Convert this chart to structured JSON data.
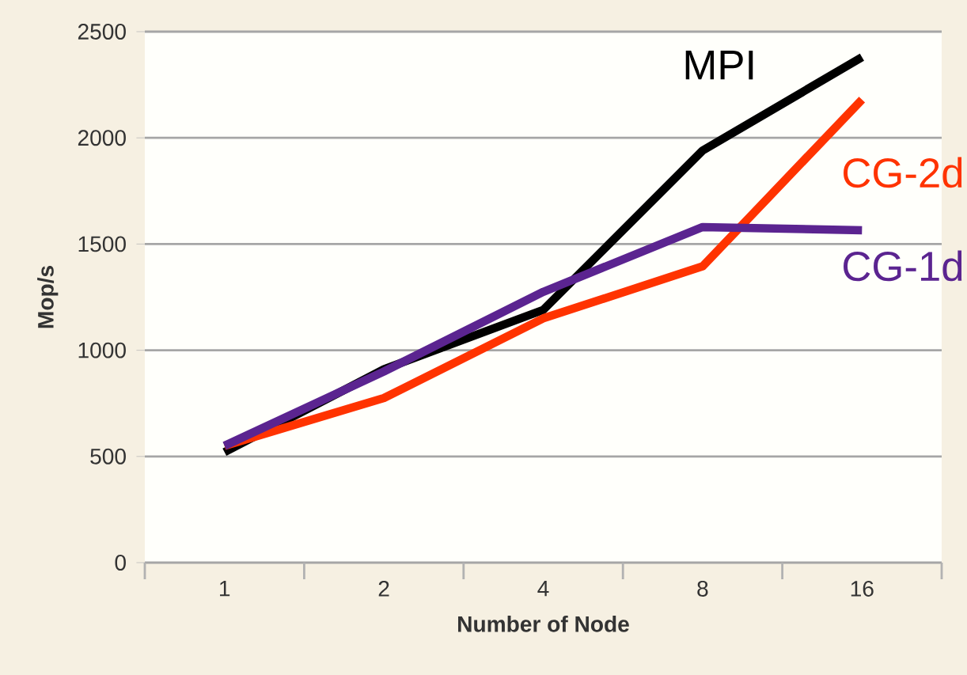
{
  "chart_data": {
    "type": "line",
    "xlabel": "Number of Node",
    "ylabel": "Mop/s",
    "categories": [
      "1",
      "2",
      "4",
      "8",
      "16"
    ],
    "series": [
      {
        "name": "MPI",
        "color": "#000000",
        "values": [
          520,
          910,
          1190,
          1940,
          2380
        ]
      },
      {
        "name": "CG-2d",
        "color": "#ff3300",
        "values": [
          550,
          775,
          1150,
          1395,
          2180
        ]
      },
      {
        "name": "CG-1d",
        "color": "#5b2490",
        "values": [
          550,
          900,
          1275,
          1580,
          1565
        ]
      }
    ],
    "ylim": [
      0,
      2500
    ],
    "yticks": [
      0,
      500,
      1000,
      1500,
      2000,
      2500
    ],
    "grid": "y",
    "marker": "none",
    "line_style": "solid"
  }
}
